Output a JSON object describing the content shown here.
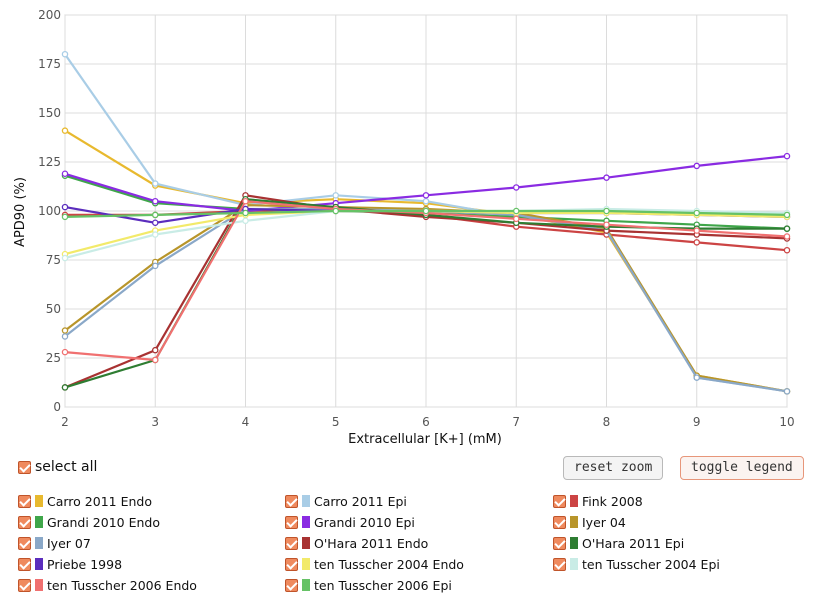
{
  "chart_data": {
    "type": "line",
    "xlabel": "Extracellular [K+] (mM)",
    "ylabel": "APD90 (%)",
    "xlim": [
      2,
      10
    ],
    "ylim": [
      0,
      200
    ],
    "xticks": [
      2,
      3,
      4,
      5,
      6,
      7,
      8,
      9,
      10
    ],
    "yticks": [
      0,
      25,
      50,
      75,
      100,
      125,
      150,
      175,
      200
    ],
    "grid": true,
    "series": [
      {
        "name": "Carro 2011 Endo",
        "color": "#e8b92e",
        "x": [
          2,
          3,
          4,
          5,
          6,
          7,
          8,
          9,
          10
        ],
        "y": [
          141,
          113,
          104,
          106,
          104,
          98,
          89,
          16,
          8
        ]
      },
      {
        "name": "Carro 2011 Epi",
        "color": "#a9cde6",
        "x": [
          2,
          3,
          4,
          5,
          6,
          7,
          8,
          9,
          10
        ],
        "y": [
          180,
          114,
          103,
          108,
          105,
          97,
          91,
          15,
          8
        ]
      },
      {
        "name": "Fink 2008",
        "color": "#cc4444",
        "x": [
          2,
          3,
          4,
          5,
          6,
          7,
          8,
          9,
          10
        ],
        "y": [
          98,
          98,
          100,
          101,
          98,
          92,
          88,
          84,
          80
        ]
      },
      {
        "name": "Grandi 2010 Endo",
        "color": "#3fa64a",
        "x": [
          2,
          3,
          4,
          5,
          6,
          7,
          8,
          9,
          10
        ],
        "y": [
          118,
          104,
          101,
          100,
          99,
          97,
          95,
          93,
          91
        ]
      },
      {
        "name": "Grandi 2010 Epi",
        "color": "#8a2be2",
        "x": [
          2,
          3,
          4,
          5,
          6,
          7,
          8,
          9,
          10
        ],
        "y": [
          119,
          105,
          100,
          104,
          108,
          112,
          117,
          123,
          128
        ]
      },
      {
        "name": "Iyer 04",
        "color": "#b8952a",
        "x": [
          2,
          3,
          4,
          5,
          6,
          7,
          8,
          9,
          10
        ],
        "y": [
          39,
          74,
          103,
          102,
          101,
          99,
          91,
          16,
          8
        ]
      },
      {
        "name": "Iyer 07",
        "color": "#8aa8c8",
        "x": [
          2,
          3,
          4,
          5,
          6,
          7,
          8,
          9,
          10
        ],
        "y": [
          36,
          72,
          101,
          101,
          100,
          98,
          90,
          15,
          8
        ]
      },
      {
        "name": "O'Hara 2011 Endo",
        "color": "#a83232",
        "x": [
          2,
          3,
          4,
          5,
          6,
          7,
          8,
          9,
          10
        ],
        "y": [
          10,
          29,
          108,
          101,
          97,
          94,
          90,
          88,
          86
        ]
      },
      {
        "name": "O'Hara 2011 Epi",
        "color": "#2e7d32",
        "x": [
          2,
          3,
          4,
          5,
          6,
          7,
          8,
          9,
          10
        ],
        "y": [
          10,
          24,
          106,
          102,
          98,
          94,
          92,
          91,
          91
        ]
      },
      {
        "name": "Priebe 1998",
        "color": "#5b2dbd",
        "x": [
          2,
          3,
          4,
          5,
          6,
          7,
          8,
          9,
          10
        ],
        "y": [
          102,
          94,
          101,
          100,
          100,
          99,
          99,
          98,
          97
        ]
      },
      {
        "name": "ten Tusscher 2004 Endo",
        "color": "#f2ea6a",
        "x": [
          2,
          3,
          4,
          5,
          6,
          7,
          8,
          9,
          10
        ],
        "y": [
          78,
          90,
          98,
          100,
          100,
          99,
          99,
          98,
          97
        ]
      },
      {
        "name": "ten Tusscher 2004 Epi",
        "color": "#c9ece6",
        "x": [
          2,
          3,
          4,
          5,
          6,
          7,
          8,
          9,
          10
        ],
        "y": [
          76,
          88,
          95,
          100,
          100,
          100,
          101,
          100,
          99
        ]
      },
      {
        "name": "ten Tusscher 2006 Endo",
        "color": "#f07070",
        "x": [
          2,
          3,
          4,
          5,
          6,
          7,
          8,
          9,
          10
        ],
        "y": [
          28,
          24,
          105,
          101,
          99,
          96,
          93,
          90,
          87
        ]
      },
      {
        "name": "ten Tusscher 2006 Epi",
        "color": "#66c266",
        "x": [
          2,
          3,
          4,
          5,
          6,
          7,
          8,
          9,
          10
        ],
        "y": [
          97,
          98,
          99,
          100,
          100,
          100,
          100,
          99,
          98
        ]
      }
    ]
  },
  "controls": {
    "select_all_label": "select all",
    "reset_zoom_label": "reset zoom",
    "toggle_legend_label": "toggle legend"
  }
}
